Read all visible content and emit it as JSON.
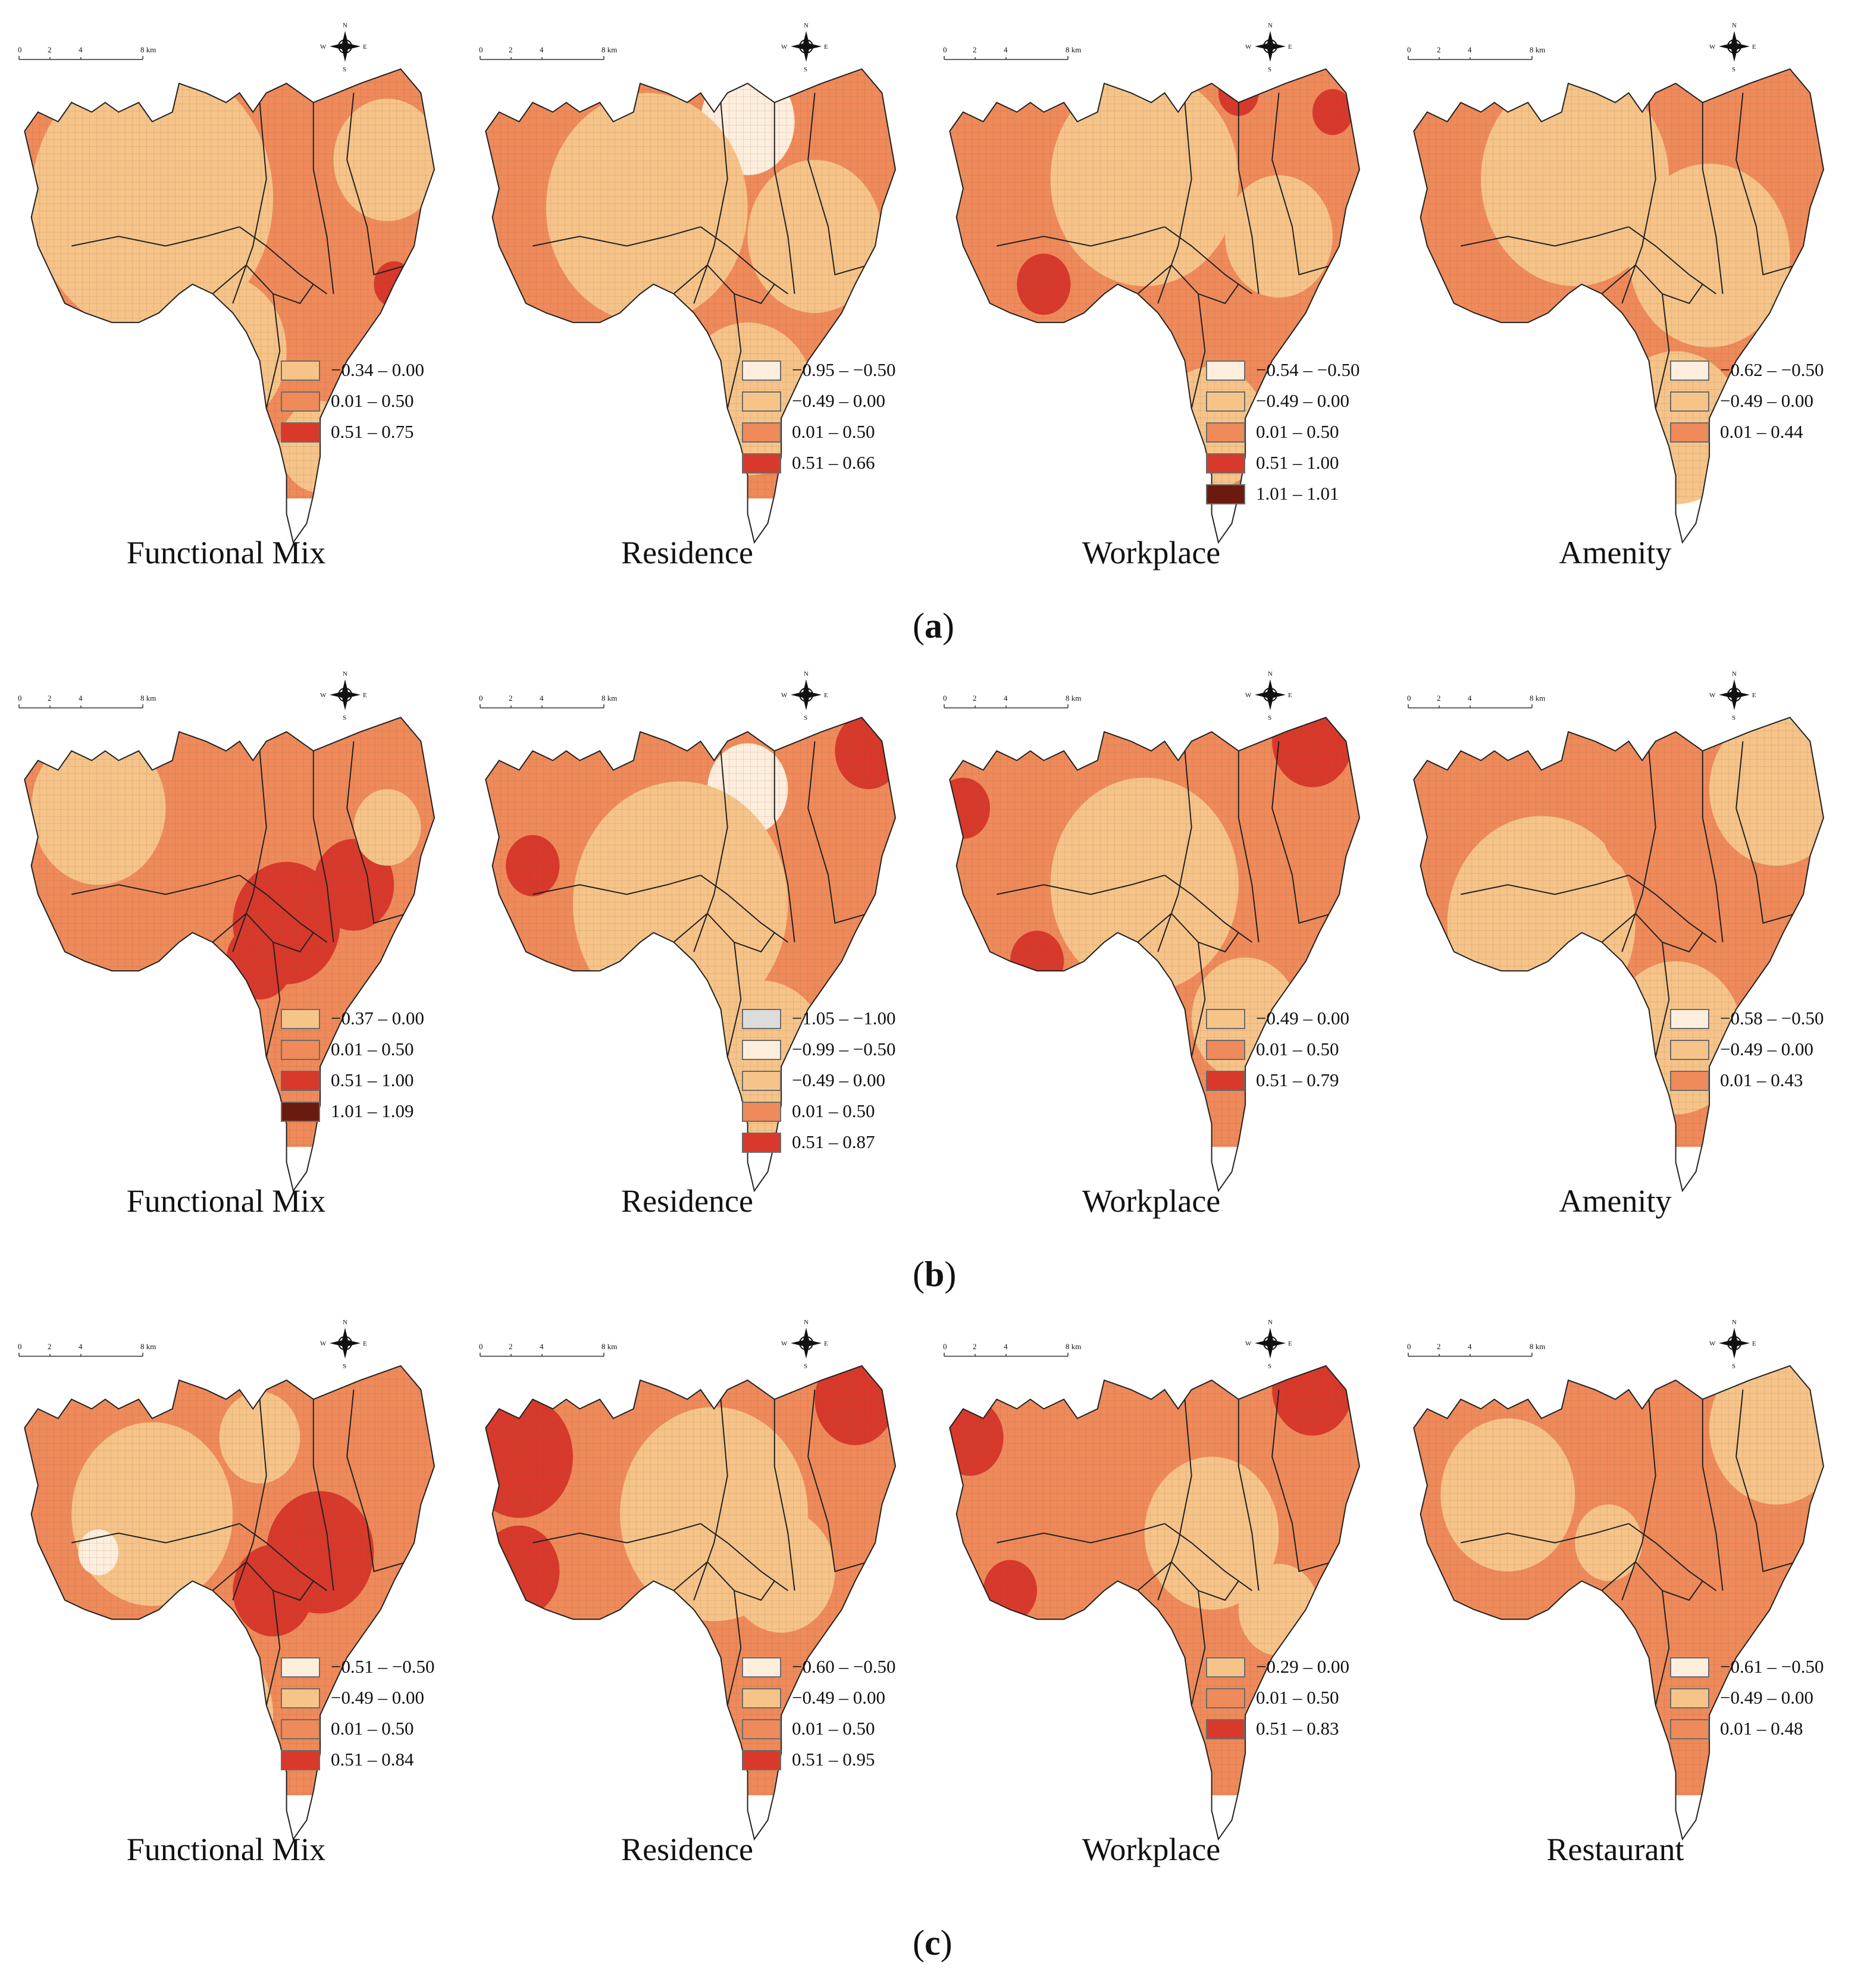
{
  "colors": {
    "c_lightgray": "#dcdcdc",
    "c_cream": "#fdeedd",
    "c_light": "#f6c489",
    "c_mid": "#ef8a5a",
    "c_red": "#d8392b",
    "c_dark": "#6b1a0f"
  },
  "map_furniture": {
    "scale_labels": [
      "0",
      "2",
      "4",
      "8 km"
    ],
    "compass": {
      "n": "N",
      "s": "S",
      "e": "E",
      "w": "W"
    }
  },
  "rows": [
    {
      "label_open": "(",
      "label": "a",
      "label_close": ")",
      "maps": [
        {
          "title": "Functional Mix",
          "legend": [
            {
              "range": "−0.34 – 0.00",
              "color": "c_light"
            },
            {
              "range": "0.01 – 0.50",
              "color": "c_mid"
            },
            {
              "range": "0.51 – 0.75",
              "color": "c_red"
            }
          ]
        },
        {
          "title": "Residence",
          "legend": [
            {
              "range": "−0.95 – −0.50",
              "color": "c_cream"
            },
            {
              "range": "−0.49 – 0.00",
              "color": "c_light"
            },
            {
              "range": "0.01 – 0.50",
              "color": "c_mid"
            },
            {
              "range": "0.51 – 0.66",
              "color": "c_red"
            }
          ]
        },
        {
          "title": "Workplace",
          "legend": [
            {
              "range": "−0.54 – −0.50",
              "color": "c_cream"
            },
            {
              "range": "−0.49 – 0.00",
              "color": "c_light"
            },
            {
              "range": "0.01 – 0.50",
              "color": "c_mid"
            },
            {
              "range": "0.51 – 1.00",
              "color": "c_red"
            },
            {
              "range": "1.01 – 1.01",
              "color": "c_dark"
            }
          ]
        },
        {
          "title": "Amenity",
          "legend": [
            {
              "range": "−0.62 – −0.50",
              "color": "c_cream"
            },
            {
              "range": "−0.49 – 0.00",
              "color": "c_light"
            },
            {
              "range": "0.01 – 0.44",
              "color": "c_mid"
            }
          ]
        }
      ]
    },
    {
      "label_open": "(",
      "label": "b",
      "label_close": ")",
      "maps": [
        {
          "title": "Functional Mix",
          "legend": [
            {
              "range": "−0.37 – 0.00",
              "color": "c_light"
            },
            {
              "range": "0.01 – 0.50",
              "color": "c_mid"
            },
            {
              "range": "0.51 – 1.00",
              "color": "c_red"
            },
            {
              "range": "1.01 – 1.09",
              "color": "c_dark"
            }
          ]
        },
        {
          "title": "Residence",
          "legend": [
            {
              "range": "−1.05 – −1.00",
              "color": "c_lightgray"
            },
            {
              "range": "−0.99 – −0.50",
              "color": "c_cream"
            },
            {
              "range": "−0.49 – 0.00",
              "color": "c_light"
            },
            {
              "range": "0.01 – 0.50",
              "color": "c_mid"
            },
            {
              "range": "0.51 – 0.87",
              "color": "c_red"
            }
          ]
        },
        {
          "title": "Workplace",
          "legend": [
            {
              "range": "−0.49 – 0.00",
              "color": "c_light"
            },
            {
              "range": "0.01 – 0.50",
              "color": "c_mid"
            },
            {
              "range": "0.51 – 0.79",
              "color": "c_red"
            }
          ]
        },
        {
          "title": "Amenity",
          "legend": [
            {
              "range": "−0.58 – −0.50",
              "color": "c_cream"
            },
            {
              "range": "−0.49 – 0.00",
              "color": "c_light"
            },
            {
              "range": "0.01 – 0.43",
              "color": "c_mid"
            }
          ]
        }
      ]
    },
    {
      "label_open": "(",
      "label": "c",
      "label_close": ")",
      "maps": [
        {
          "title": "Functional Mix",
          "legend": [
            {
              "range": "−0.51 – −0.50",
              "color": "c_cream"
            },
            {
              "range": "−0.49 – 0.00",
              "color": "c_light"
            },
            {
              "range": "0.01 – 0.50",
              "color": "c_mid"
            },
            {
              "range": "0.51 – 0.84",
              "color": "c_red"
            }
          ]
        },
        {
          "title": "Residence",
          "legend": [
            {
              "range": "−0.60 – −0.50",
              "color": "c_cream"
            },
            {
              "range": "−0.49 – 0.00",
              "color": "c_light"
            },
            {
              "range": "0.01 – 0.50",
              "color": "c_mid"
            },
            {
              "range": "0.51 – 0.95",
              "color": "c_red"
            }
          ]
        },
        {
          "title": "Workplace",
          "legend": [
            {
              "range": "−0.29 – 0.00",
              "color": "c_light"
            },
            {
              "range": "0.01 – 0.50",
              "color": "c_mid"
            },
            {
              "range": "0.51 – 0.83",
              "color": "c_red"
            }
          ]
        },
        {
          "title": "Restaurant",
          "legend": [
            {
              "range": "−0.61 – −0.50",
              "color": "c_cream"
            },
            {
              "range": "−0.49 – 0.00",
              "color": "c_light"
            },
            {
              "range": "0.01 – 0.48",
              "color": "c_mid"
            }
          ]
        }
      ]
    }
  ]
}
